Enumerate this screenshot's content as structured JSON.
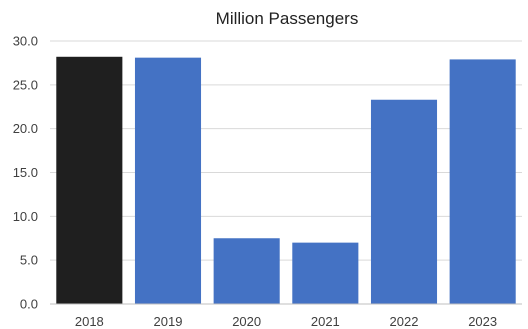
{
  "chart_data": {
    "type": "bar",
    "title": "Million Passengers",
    "xlabel": "",
    "ylabel": "",
    "categories": [
      "2018",
      "2019",
      "2020",
      "2021",
      "2022",
      "2023"
    ],
    "values": [
      28.2,
      28.1,
      7.5,
      7.0,
      23.3,
      27.9
    ],
    "bar_colors": [
      "#1f1f1f",
      "#4472c4",
      "#4472c4",
      "#4472c4",
      "#4472c4",
      "#4472c4"
    ],
    "ylim": [
      0,
      30
    ],
    "yticks": [
      "0.0",
      "5.0",
      "10.0",
      "15.0",
      "20.0",
      "25.0",
      "30.0"
    ],
    "grid": true,
    "legend": "none"
  }
}
